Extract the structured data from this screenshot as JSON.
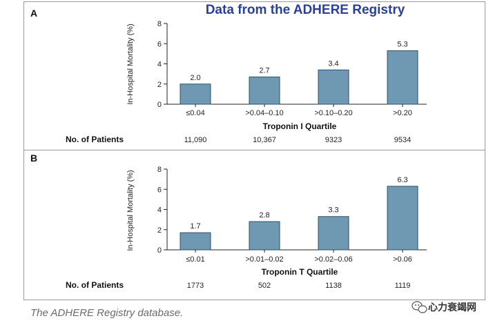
{
  "figure": {
    "title": "Data from the ADHERE Registry",
    "title_color": "#2a3f9b",
    "bar_color": "#6f98b3",
    "bar_stroke": "#2f4f66",
    "border_color": "#9a9a9a",
    "caption": "The ADHERE Registry database.",
    "watermark": "心力衰竭网"
  },
  "chart_data": [
    {
      "type": "bar",
      "panel": "A",
      "ylabel": "In-Hospital Mortality (%)",
      "xlabel": "Troponin I Quartile",
      "yticks": [
        0,
        2,
        4,
        6,
        8
      ],
      "ylim": [
        0,
        8
      ],
      "categories": [
        "≤0.04",
        ">0.04–0.10",
        ">0.10–0.20",
        ">0.20"
      ],
      "values": [
        2.0,
        2.7,
        3.4,
        5.3
      ],
      "value_labels": [
        "2.0",
        "2.7",
        "3.4",
        "5.3"
      ],
      "patients_label": "No. of Patients",
      "patients": [
        "11,090",
        "10,367",
        "9323",
        "9534"
      ]
    },
    {
      "type": "bar",
      "panel": "B",
      "ylabel": "In-Hospital Mortality (%)",
      "xlabel": "Troponin T Quartile",
      "yticks": [
        0,
        2,
        4,
        6,
        8
      ],
      "ylim": [
        0,
        8
      ],
      "categories": [
        "≤0.01",
        ">0.01–0.02",
        ">0.02–0.06",
        ">0.06"
      ],
      "values": [
        1.7,
        2.8,
        3.3,
        6.3
      ],
      "value_labels": [
        "1.7",
        "2.8",
        "3.3",
        "6.3"
      ],
      "patients_label": "No. of Patients",
      "patients": [
        "1773",
        "502",
        "1138",
        "1119"
      ]
    }
  ]
}
